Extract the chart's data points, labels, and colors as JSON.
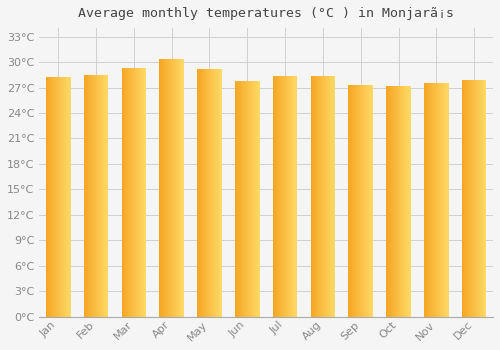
{
  "months": [
    "Jan",
    "Feb",
    "Mar",
    "Apr",
    "May",
    "Jun",
    "Jul",
    "Aug",
    "Sep",
    "Oct",
    "Nov",
    "Dec"
  ],
  "temperatures": [
    28.2,
    28.5,
    29.3,
    30.3,
    29.2,
    27.8,
    28.3,
    28.4,
    27.3,
    27.2,
    27.5,
    27.9
  ],
  "title": "Average monthly temperatures (°C ) in Monjarã¡s",
  "bar_color_left": "#F5A623",
  "bar_color_right": "#FFD966",
  "ylim": [
    0,
    34
  ],
  "ytick_step": 3,
  "background_color": "#f5f5f5",
  "plot_bg_color": "#f5f5f5",
  "grid_color": "#d0d0d0",
  "text_color": "#888888",
  "title_color": "#444444",
  "bar_width": 0.65
}
